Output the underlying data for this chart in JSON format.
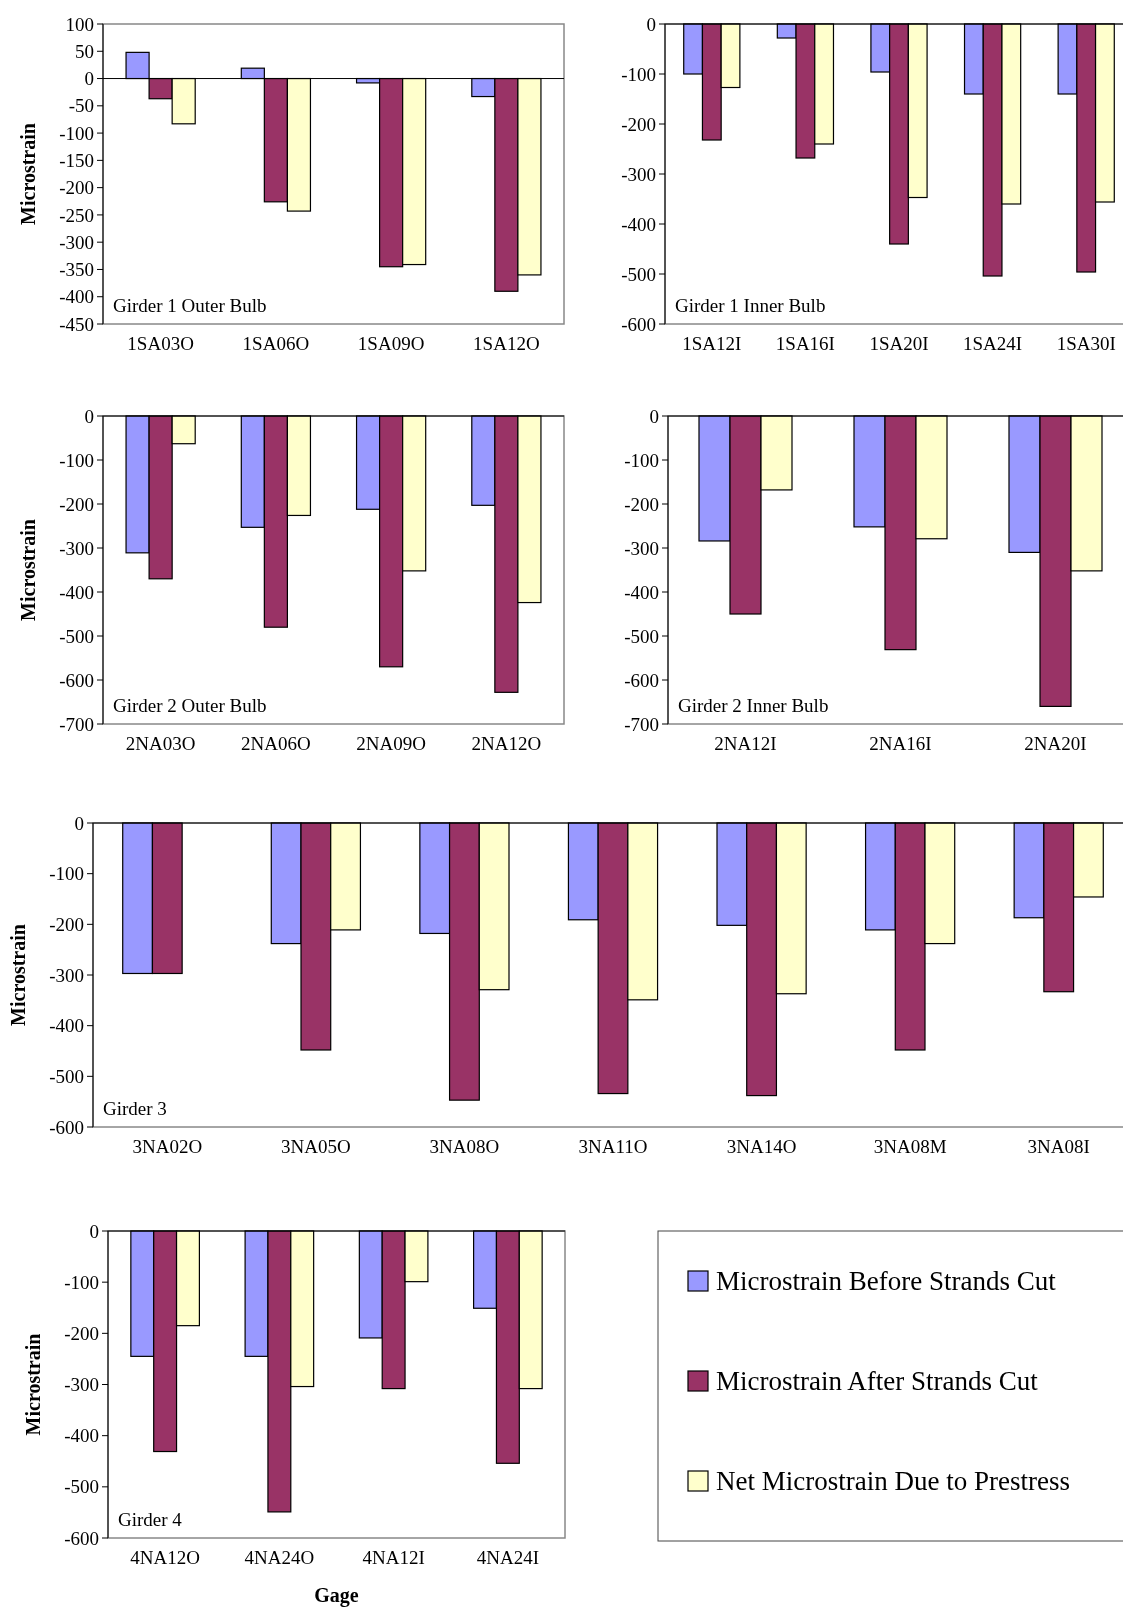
{
  "chart_data": [
    {
      "type": "bar",
      "title": "Girder 1 Outer Bulb",
      "ylabel": "Microstrain",
      "categories": [
        "1SA03O",
        "1SA06O",
        "1SA09O",
        "1SA12O"
      ],
      "ylim": [
        -450,
        100
      ],
      "yticks": [
        100,
        50,
        0,
        -50,
        -100,
        -150,
        -200,
        -250,
        -300,
        -350,
        -400,
        -450
      ],
      "series": [
        {
          "color": "#9999ff",
          "values": [
            48,
            19,
            -8,
            -33
          ]
        },
        {
          "color": "#993366",
          "values": [
            -37,
            -226,
            -345,
            -390
          ]
        },
        {
          "color": "#ffffcc",
          "values": [
            -83,
            -243,
            -341,
            -360
          ]
        }
      ]
    },
    {
      "type": "bar",
      "title": "Girder 1 Inner Bulb",
      "categories": [
        "1SA12I",
        "1SA16I",
        "1SA20I",
        "1SA24I",
        "1SA30I"
      ],
      "ylim": [
        -600,
        0
      ],
      "yticks": [
        0,
        -100,
        -200,
        -300,
        -400,
        -500,
        -600
      ],
      "series": [
        {
          "color": "#9999ff",
          "values": [
            -100,
            -28,
            -96,
            -140,
            -140
          ]
        },
        {
          "color": "#993366",
          "values": [
            -232,
            -268,
            -440,
            -504,
            -496
          ]
        },
        {
          "color": "#ffffcc",
          "values": [
            -127,
            -240,
            -347,
            -360,
            -356
          ]
        }
      ]
    },
    {
      "type": "bar",
      "title": "Girder 2 Outer Bulb",
      "ylabel": "Microstrain",
      "categories": [
        "2NA03O",
        "2NA06O",
        "2NA09O",
        "2NA12O"
      ],
      "ylim": [
        -700,
        0
      ],
      "yticks": [
        0,
        -100,
        -200,
        -300,
        -400,
        -500,
        -600,
        -700
      ],
      "series": [
        {
          "color": "#9999ff",
          "values": [
            -311,
            -253,
            -212,
            -203
          ]
        },
        {
          "color": "#993366",
          "values": [
            -370,
            -480,
            -570,
            -628
          ]
        },
        {
          "color": "#ffffcc",
          "values": [
            -63,
            -226,
            -352,
            -424
          ]
        }
      ]
    },
    {
      "type": "bar",
      "title": "Girder 2 Inner Bulb",
      "categories": [
        "2NA12I",
        "2NA16I",
        "2NA20I"
      ],
      "ylim": [
        -700,
        0
      ],
      "yticks": [
        0,
        -100,
        -200,
        -300,
        -400,
        -500,
        -600,
        -700
      ],
      "series": [
        {
          "color": "#9999ff",
          "values": [
            -284,
            -252,
            -310
          ]
        },
        {
          "color": "#993366",
          "values": [
            -450,
            -531,
            -660
          ]
        },
        {
          "color": "#ffffcc",
          "values": [
            -168,
            -279,
            -352
          ]
        }
      ]
    },
    {
      "type": "bar",
      "title": "Girder 3",
      "ylabel": "Microstrain",
      "categories": [
        "3NA02O",
        "3NA05O",
        "3NA08O",
        "3NA11O",
        "3NA14O",
        "3NA08M",
        "3NA08I"
      ],
      "ylim": [
        -600,
        0
      ],
      "yticks": [
        0,
        -100,
        -200,
        -300,
        -400,
        -500,
        -600
      ],
      "series": [
        {
          "color": "#9999ff",
          "values": [
            -297,
            -238,
            -218,
            -191,
            -202,
            -211,
            -187
          ]
        },
        {
          "color": "#993366",
          "values": [
            -297,
            -448,
            -547,
            -534,
            -538,
            -448,
            -333
          ]
        },
        {
          "color": "#ffffcc",
          "values": [
            null,
            -211,
            -329,
            -349,
            -337,
            -238,
            -146
          ]
        }
      ]
    },
    {
      "type": "bar",
      "title": "Girder 4",
      "ylabel": "Microstrain",
      "xlabel": "Gage",
      "legend": "right",
      "categories": [
        "4NA12O",
        "4NA24O",
        "4NA12I",
        "4NA24I"
      ],
      "ylim": [
        -600,
        0
      ],
      "yticks": [
        0,
        -100,
        -200,
        -300,
        -400,
        -500,
        -600
      ],
      "series": [
        {
          "name": "Microstrain Before Strands Cut",
          "color": "#9999ff",
          "values": [
            -245,
            -245,
            -209,
            -151
          ]
        },
        {
          "name": "Microstrain After Strands Cut",
          "color": "#993366",
          "values": [
            -431,
            -549,
            -308,
            -454
          ]
        },
        {
          "name": "Net Microstrain Due to Prestress",
          "color": "#ffffcc",
          "values": [
            -185,
            -304,
            -99,
            -308
          ]
        }
      ]
    }
  ]
}
